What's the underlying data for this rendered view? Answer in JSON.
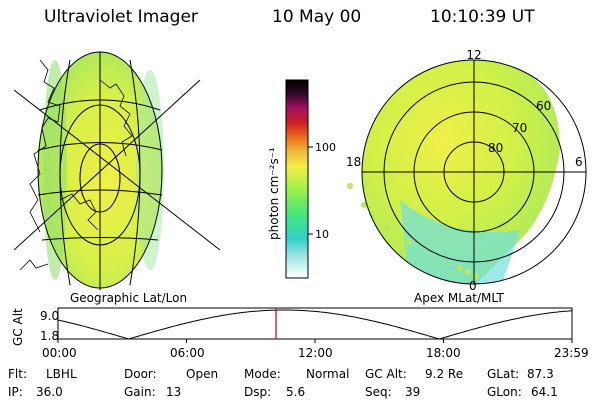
{
  "header": {
    "instrument": "Ultraviolet Imager",
    "date": "10 May 00",
    "time": "10:10:39 UT"
  },
  "colorbar": {
    "unit_label": "photon cm⁻²s⁻¹",
    "ticks": [
      "100",
      "10"
    ],
    "tick_values": [
      100,
      10
    ],
    "scale": "log",
    "range": [
      2.5,
      700
    ],
    "colors": [
      "#ffffff",
      "#a8e8e8",
      "#30d0c8",
      "#48e878",
      "#a0f048",
      "#f0f048",
      "#f0c040",
      "#f07820",
      "#d02020",
      "#a01060",
      "#300828",
      "#000000"
    ]
  },
  "left_panel": {
    "caption": "Geographic Lat/Lon"
  },
  "right_panel": {
    "caption": "Apex MLat/MLT",
    "mlt_labels": {
      "top": "12",
      "left": "18",
      "right": "6",
      "bottom": "0"
    },
    "mlat_labels": [
      "60",
      "70",
      "80"
    ]
  },
  "altitude_plot": {
    "ylabel": "GC Alt",
    "yticks": [
      "9.0",
      "1.8"
    ],
    "xticks": [
      "00:00",
      "06:00",
      "12:00",
      "18:00",
      "23:59"
    ],
    "current_time_hours": 10.18
  },
  "footer": {
    "row1": [
      {
        "label": "Flt:",
        "value": "LBHL"
      },
      {
        "label": "Door:",
        "value": "Open"
      },
      {
        "label": "Mode:",
        "value": "Normal"
      },
      {
        "label": "GC Alt:",
        "value": "9.2 Re"
      },
      {
        "label": "GLat:",
        "value": "87.3"
      }
    ],
    "row2": [
      {
        "label": "IP:",
        "value": "36.0"
      },
      {
        "label": "Gain:",
        "value": "13"
      },
      {
        "label": "Dsp:",
        "value": "5.6"
      },
      {
        "label": "Seq:",
        "value": "39"
      },
      {
        "label": "GLon:",
        "value": "64.1"
      }
    ]
  },
  "colors": {
    "line": "#000000",
    "marker": "#d00000",
    "auroral_green": "#b8e860",
    "auroral_yellow": "#f0f048",
    "auroral_cyan": "#60e0e0"
  }
}
